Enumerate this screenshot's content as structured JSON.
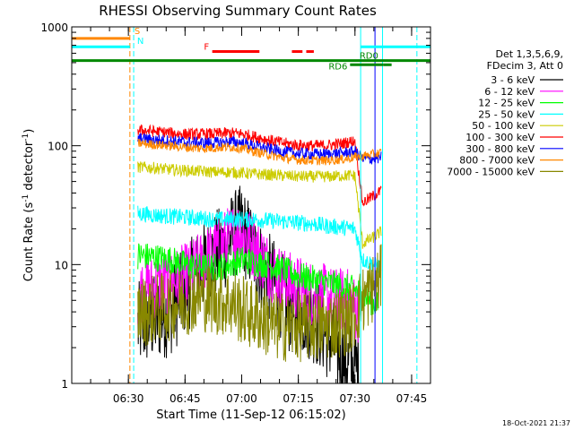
{
  "chart_data": {
    "type": "line",
    "title": "RHESSI Observing Summary Count Rates",
    "xlabel": "Start Time (11-Sep-12 06:15:02)",
    "ylabel_main": "Count Rate (s",
    "ylabel_sup1": "-1",
    "ylabel_mid": " detector",
    "ylabel_sup2": "-1",
    "ylabel_end": ")",
    "x_unit": "minutes since 06:15:02",
    "xlim": [
      0,
      95
    ],
    "ylim": [
      1,
      1000
    ],
    "yscale": "log",
    "x_ticks": [
      {
        "label": "06:30",
        "v": 15
      },
      {
        "label": "06:45",
        "v": 30
      },
      {
        "label": "07:00",
        "v": 45
      },
      {
        "label": "07:15",
        "v": 60
      },
      {
        "label": "07:30",
        "v": 75
      },
      {
        "label": "07:45",
        "v": 90
      }
    ],
    "y_ticks": [
      {
        "label": "1",
        "v": 1
      },
      {
        "label": "10",
        "v": 10
      },
      {
        "label": "100",
        "v": 100
      },
      {
        "label": "1000",
        "v": 1000
      }
    ],
    "legend": {
      "header1": "Det 1,3,5,6,9,",
      "header2": "FDecim 3, Att 0",
      "entries": [
        {
          "label": "3 - 6 keV",
          "color": "#000000"
        },
        {
          "label": "6 - 12 keV",
          "color": "#ff00ff"
        },
        {
          "label": "12 - 25 keV",
          "color": "#00ff00"
        },
        {
          "label": "25 - 50 keV",
          "color": "#00ffff"
        },
        {
          "label": "50 - 100 keV",
          "color": "#cccc00"
        },
        {
          "label": "100 - 300 keV",
          "color": "#ff0000"
        },
        {
          "label": "300 - 800 keV",
          "color": "#0000ff"
        },
        {
          "label": "800 - 7000 keV",
          "color": "#ff8800"
        },
        {
          "label": "7000 - 15000 keV",
          "color": "#888800"
        }
      ]
    },
    "series": [
      {
        "name": "3 - 6 keV",
        "color": "#000000",
        "points": [
          [
            17.5,
            3
          ],
          [
            22,
            3.5
          ],
          [
            26,
            4
          ],
          [
            30,
            6
          ],
          [
            34,
            9
          ],
          [
            38,
            12
          ],
          [
            41,
            15
          ],
          [
            43,
            18
          ],
          [
            45,
            20
          ],
          [
            47,
            15
          ],
          [
            49,
            11
          ],
          [
            52,
            8
          ],
          [
            55,
            6
          ],
          [
            58,
            4
          ],
          [
            62,
            4
          ],
          [
            66,
            3
          ],
          [
            70,
            2
          ],
          [
            73,
            1.5
          ],
          [
            76,
            1.3
          ]
        ],
        "noise": 0.38
      },
      {
        "name": "6 - 12 keV",
        "color": "#ff00ff",
        "points": [
          [
            17.5,
            6
          ],
          [
            22,
            6.5
          ],
          [
            26,
            7
          ],
          [
            30,
            8
          ],
          [
            34,
            10
          ],
          [
            38,
            13
          ],
          [
            41,
            16
          ],
          [
            43,
            18
          ],
          [
            45,
            19
          ],
          [
            47,
            16
          ],
          [
            50,
            12
          ],
          [
            53,
            9
          ],
          [
            57,
            7
          ],
          [
            62,
            6
          ],
          [
            66,
            5.5
          ],
          [
            70,
            5
          ],
          [
            73,
            5
          ],
          [
            76,
            4
          ]
        ],
        "noise": 0.28
      },
      {
        "name": "12 - 25 keV",
        "color": "#00ff00",
        "points": [
          [
            17.5,
            12
          ],
          [
            22,
            11.5
          ],
          [
            26,
            11
          ],
          [
            30,
            10
          ],
          [
            34,
            9.5
          ],
          [
            38,
            9.5
          ],
          [
            42,
            10
          ],
          [
            45,
            11
          ],
          [
            48,
            10.5
          ],
          [
            52,
            10
          ],
          [
            56,
            9
          ],
          [
            60,
            8
          ],
          [
            64,
            7.5
          ],
          [
            68,
            7
          ],
          [
            72,
            6.5
          ],
          [
            76,
            6
          ],
          [
            79,
            5
          ],
          [
            81,
            4.5
          ]
        ],
        "noise": 0.12
      },
      {
        "name": "25 - 50 keV",
        "color": "#00ffff",
        "points": [
          [
            17.5,
            27
          ],
          [
            22,
            26
          ],
          [
            26,
            25.5
          ],
          [
            30,
            25
          ],
          [
            34,
            24.5
          ],
          [
            38,
            24
          ],
          [
            42,
            24
          ],
          [
            45,
            24
          ],
          [
            48,
            24
          ],
          [
            52,
            23.5
          ],
          [
            56,
            23
          ],
          [
            60,
            22.5
          ],
          [
            64,
            22
          ],
          [
            68,
            21
          ],
          [
            72,
            20.5
          ],
          [
            75,
            20
          ],
          [
            77,
            11
          ],
          [
            80,
            10
          ],
          [
            82,
            9.5
          ]
        ],
        "noise": 0.07
      },
      {
        "name": "50 - 100 keV",
        "color": "#cccc00",
        "points": [
          [
            17.5,
            66
          ],
          [
            22,
            65
          ],
          [
            26,
            63
          ],
          [
            30,
            62
          ],
          [
            34,
            61
          ],
          [
            38,
            60
          ],
          [
            42,
            60
          ],
          [
            45,
            59
          ],
          [
            48,
            58
          ],
          [
            52,
            57
          ],
          [
            56,
            56
          ],
          [
            60,
            55
          ],
          [
            64,
            55
          ],
          [
            68,
            55
          ],
          [
            72,
            56
          ],
          [
            75,
            56
          ],
          [
            77,
            15
          ],
          [
            80,
            17
          ],
          [
            82,
            19
          ]
        ],
        "noise": 0.05
      },
      {
        "name": "100 - 300 keV",
        "color": "#ff0000",
        "points": [
          [
            17.5,
            135
          ],
          [
            22,
            132
          ],
          [
            26,
            128
          ],
          [
            30,
            125
          ],
          [
            34,
            125
          ],
          [
            38,
            126
          ],
          [
            42,
            128
          ],
          [
            45,
            126
          ],
          [
            48,
            120
          ],
          [
            52,
            112
          ],
          [
            56,
            105
          ],
          [
            60,
            101
          ],
          [
            64,
            100
          ],
          [
            68,
            101
          ],
          [
            72,
            105
          ],
          [
            75,
            110
          ],
          [
            77,
            33
          ],
          [
            80,
            38
          ],
          [
            82,
            42
          ]
        ],
        "noise": 0.05
      },
      {
        "name": "300 - 800 keV",
        "color": "#0000ff",
        "points": [
          [
            17.5,
            115
          ],
          [
            22,
            112
          ],
          [
            26,
            110
          ],
          [
            30,
            107
          ],
          [
            34,
            106
          ],
          [
            38,
            106
          ],
          [
            42,
            108
          ],
          [
            45,
            106
          ],
          [
            48,
            100
          ],
          [
            52,
            94
          ],
          [
            56,
            89
          ],
          [
            60,
            86
          ],
          [
            64,
            85
          ],
          [
            68,
            85
          ],
          [
            72,
            87
          ],
          [
            75,
            90
          ],
          [
            77,
            77
          ],
          [
            80,
            78
          ],
          [
            82,
            80
          ]
        ],
        "noise": 0.05
      },
      {
        "name": "800 - 7000 keV",
        "color": "#ff8800",
        "points": [
          [
            17.5,
            105
          ],
          [
            22,
            102
          ],
          [
            26,
            100
          ],
          [
            30,
            97
          ],
          [
            34,
            95
          ],
          [
            38,
            96
          ],
          [
            42,
            98
          ],
          [
            45,
            95
          ],
          [
            48,
            90
          ],
          [
            52,
            84
          ],
          [
            56,
            79
          ],
          [
            60,
            76
          ],
          [
            64,
            75
          ],
          [
            68,
            75
          ],
          [
            72,
            77
          ],
          [
            75,
            80
          ],
          [
            77,
            82
          ],
          [
            80,
            85
          ],
          [
            82,
            87
          ]
        ],
        "noise": 0.04
      },
      {
        "name": "7000 - 15000 keV",
        "color": "#888800",
        "points": [
          [
            17.5,
            4
          ],
          [
            22,
            4.2
          ],
          [
            26,
            4.5
          ],
          [
            30,
            5
          ],
          [
            34,
            5.5
          ],
          [
            38,
            5
          ],
          [
            42,
            4.8
          ],
          [
            46,
            4
          ],
          [
            50,
            3.5
          ],
          [
            54,
            3
          ],
          [
            58,
            3
          ],
          [
            62,
            3
          ],
          [
            66,
            3
          ],
          [
            70,
            3.2
          ],
          [
            74,
            3.5
          ],
          [
            77,
            5
          ],
          [
            80,
            6.5
          ],
          [
            82,
            7.5
          ]
        ],
        "noise": 0.3
      }
    ],
    "vertical_lines": [
      {
        "x": 15.4,
        "color": "#ff8800",
        "style": "dashed"
      },
      {
        "x": 16.4,
        "color": "#00ffff",
        "style": "dashed"
      },
      {
        "x": 76.5,
        "color": "#00ffff",
        "style": "solid"
      },
      {
        "x": 80.3,
        "color": "#0000ff",
        "style": "solid"
      },
      {
        "x": 82.3,
        "color": "#00ffff",
        "style": "solid"
      },
      {
        "x": 91.4,
        "color": "#00ffff",
        "style": "dashed"
      }
    ],
    "flag_bars": [
      {
        "x": [
          0,
          15.4
        ],
        "y": 800,
        "color": "#ff8800"
      },
      {
        "x": [
          0,
          15.4
        ],
        "y": 680,
        "color": "#00ffff"
      },
      {
        "x": [
          76.5,
          95
        ],
        "y": 680,
        "color": "#00ffff"
      },
      {
        "x": [
          0,
          95
        ],
        "y": 520,
        "color": "#008800"
      },
      {
        "x": [
          37.2,
          49.7
        ],
        "y": 620,
        "color": "#ff0000"
      },
      {
        "x": [
          58.3,
          61.1
        ],
        "y": 620,
        "color": "#ff0000"
      },
      {
        "x": [
          62.1,
          64.1
        ],
        "y": 620,
        "color": "#ff0000"
      },
      {
        "x": [
          73.7,
          82.6
        ],
        "y": 480,
        "color": "#008800"
      },
      {
        "x": [
          82.6,
          84.7
        ],
        "y": 480,
        "color": "#008800"
      }
    ],
    "annotations": [
      {
        "text": "S",
        "x": 16.6,
        "y": 870,
        "color": "#ff8800"
      },
      {
        "text": "N",
        "x": 17.3,
        "y": 720,
        "color": "#00ffff"
      },
      {
        "text": "F",
        "x": 35.0,
        "y": 640,
        "color": "#ff0000"
      },
      {
        "text": "RD0",
        "x": 76.2,
        "y": 540,
        "color": "#008800"
      },
      {
        "text": "RD6",
        "x": 68.0,
        "y": 440,
        "color": "#008800"
      }
    ]
  },
  "timestamp": "18-Oct-2021 21:37"
}
